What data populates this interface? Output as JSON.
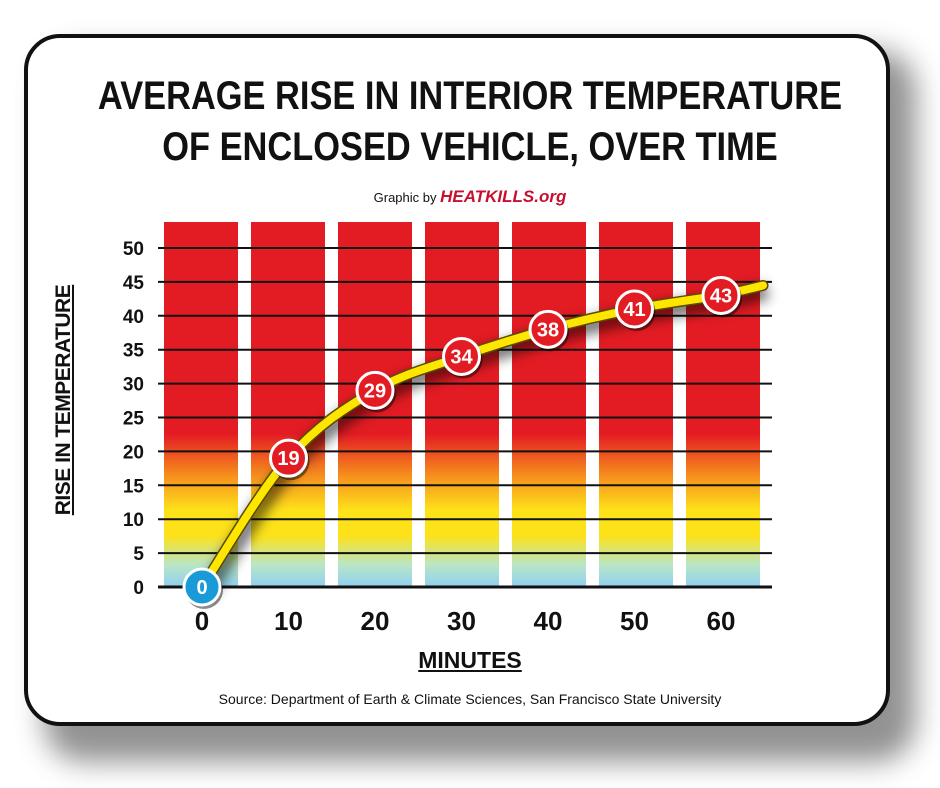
{
  "title_line1": "AVERAGE RISE IN INTERIOR TEMPERATURE",
  "title_line2": "OF ENCLOSED VEHICLE, OVER TIME",
  "credit": {
    "prefix": "Graphic by ",
    "brand_heat": "HEATKILLS",
    "brand_suffix": ".org"
  },
  "source": "Source: Department of Earth & Climate Sciences, San Francisco State University",
  "colors": {
    "hot": "#e31b23",
    "orange": "#f7941d",
    "yellow": "#fde21a",
    "cool": "#8fd0f0",
    "line": "#ffe600",
    "marker": "#e31b23",
    "start_marker": "#1a9ad6"
  },
  "chart_data": {
    "type": "line",
    "title": "AVERAGE RISE IN INTERIOR TEMPERATURE OF ENCLOSED VEHICLE, OVER TIME",
    "xlabel": "MINUTES",
    "ylabel": "RISE IN TEMPERATURE",
    "x": [
      0,
      10,
      20,
      30,
      40,
      50,
      60
    ],
    "x_tick_labels": [
      "0",
      "10",
      "20",
      "30",
      "40",
      "50",
      "60"
    ],
    "y_ticks": [
      0,
      5,
      10,
      15,
      20,
      25,
      30,
      35,
      40,
      45,
      50
    ],
    "ylim": [
      0,
      50
    ],
    "grid": true,
    "series": [
      {
        "values": [
          0,
          19,
          29,
          34,
          38,
          41,
          43
        ],
        "labels": [
          "0",
          "19",
          "29",
          "34",
          "38",
          "41",
          "43"
        ]
      }
    ]
  }
}
